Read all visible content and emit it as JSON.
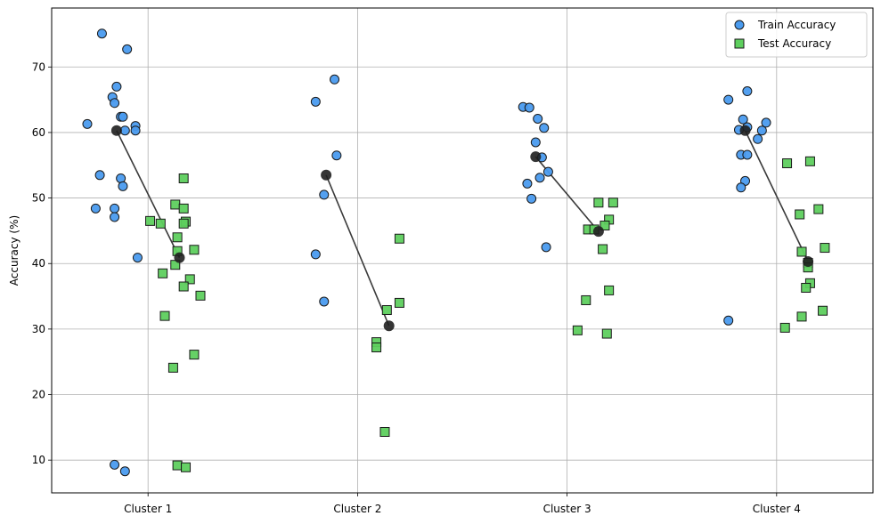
{
  "chart_data": {
    "type": "scatter",
    "title": "",
    "xlabel": "",
    "ylabel": "Accuracy (%)",
    "categories": [
      "Cluster 1",
      "Cluster 2",
      "Cluster 3",
      "Cluster 4"
    ],
    "ylim": [
      5,
      79
    ],
    "yticks": [
      10,
      20,
      30,
      40,
      50,
      60,
      70
    ],
    "grid": true,
    "legend_position": "top-right",
    "series": [
      {
        "name": "Train Accuracy",
        "marker": "circle",
        "color": "#4a9bef",
        "points": [
          {
            "x": -0.29,
            "y": 61.3
          },
          {
            "x": -0.22,
            "y": 75.1
          },
          {
            "x": -0.17,
            "y": 65.4
          },
          {
            "x": -0.16,
            "y": 64.5
          },
          {
            "x": -0.15,
            "y": 67.0
          },
          {
            "x": -0.13,
            "y": 62.4
          },
          {
            "x": -0.12,
            "y": 62.4
          },
          {
            "x": -0.1,
            "y": 72.7
          },
          {
            "x": -0.11,
            "y": 60.3
          },
          {
            "x": -0.06,
            "y": 61.0
          },
          {
            "x": -0.06,
            "y": 60.3
          },
          {
            "x": -0.23,
            "y": 53.5
          },
          {
            "x": -0.13,
            "y": 53.0
          },
          {
            "x": -0.12,
            "y": 51.8
          },
          {
            "x": -0.25,
            "y": 48.4
          },
          {
            "x": -0.16,
            "y": 48.4
          },
          {
            "x": -0.16,
            "y": 47.1
          },
          {
            "x": -0.05,
            "y": 40.9
          },
          {
            "x": -0.16,
            "y": 9.3
          },
          {
            "x": -0.11,
            "y": 8.3
          },
          {
            "x": 0.8,
            "y": 64.7
          },
          {
            "x": 0.89,
            "y": 68.1
          },
          {
            "x": 0.9,
            "y": 56.5
          },
          {
            "x": 0.84,
            "y": 50.5
          },
          {
            "x": 0.8,
            "y": 41.4
          },
          {
            "x": 0.84,
            "y": 34.2
          },
          {
            "x": 1.79,
            "y": 63.9
          },
          {
            "x": 1.82,
            "y": 63.8
          },
          {
            "x": 1.86,
            "y": 62.1
          },
          {
            "x": 1.89,
            "y": 60.7
          },
          {
            "x": 1.85,
            "y": 58.5
          },
          {
            "x": 1.88,
            "y": 56.2
          },
          {
            "x": 1.91,
            "y": 54.0
          },
          {
            "x": 1.87,
            "y": 53.1
          },
          {
            "x": 1.81,
            "y": 52.2
          },
          {
            "x": 1.83,
            "y": 49.9
          },
          {
            "x": 1.9,
            "y": 42.5
          },
          {
            "x": 2.77,
            "y": 65.0
          },
          {
            "x": 2.86,
            "y": 66.3
          },
          {
            "x": 2.84,
            "y": 62.0
          },
          {
            "x": 2.95,
            "y": 61.5
          },
          {
            "x": 2.82,
            "y": 60.4
          },
          {
            "x": 2.86,
            "y": 60.8
          },
          {
            "x": 2.93,
            "y": 60.3
          },
          {
            "x": 2.91,
            "y": 59.0
          },
          {
            "x": 2.83,
            "y": 56.6
          },
          {
            "x": 2.86,
            "y": 56.6
          },
          {
            "x": 2.85,
            "y": 52.6
          },
          {
            "x": 2.83,
            "y": 51.6
          },
          {
            "x": 2.77,
            "y": 31.3
          }
        ]
      },
      {
        "name": "Test Accuracy",
        "marker": "square",
        "color": "#5ecf5e",
        "points": [
          {
            "x": 0.17,
            "y": 53.0
          },
          {
            "x": 0.13,
            "y": 49.0
          },
          {
            "x": 0.17,
            "y": 48.4
          },
          {
            "x": 0.01,
            "y": 46.5
          },
          {
            "x": 0.06,
            "y": 46.1
          },
          {
            "x": 0.18,
            "y": 46.4
          },
          {
            "x": 0.17,
            "y": 46.1
          },
          {
            "x": 0.14,
            "y": 44.0
          },
          {
            "x": 0.22,
            "y": 42.1
          },
          {
            "x": 0.14,
            "y": 41.9
          },
          {
            "x": 0.13,
            "y": 39.8
          },
          {
            "x": 0.07,
            "y": 38.5
          },
          {
            "x": 0.2,
            "y": 37.6
          },
          {
            "x": 0.17,
            "y": 36.5
          },
          {
            "x": 0.25,
            "y": 35.1
          },
          {
            "x": 0.08,
            "y": 32.0
          },
          {
            "x": 0.22,
            "y": 26.1
          },
          {
            "x": 0.12,
            "y": 24.1
          },
          {
            "x": 0.14,
            "y": 9.2
          },
          {
            "x": 0.18,
            "y": 8.9
          },
          {
            "x": 1.2,
            "y": 43.8
          },
          {
            "x": 1.2,
            "y": 34.0
          },
          {
            "x": 1.14,
            "y": 32.9
          },
          {
            "x": 1.09,
            "y": 28.0
          },
          {
            "x": 1.09,
            "y": 27.2
          },
          {
            "x": 1.13,
            "y": 14.3
          },
          {
            "x": 2.15,
            "y": 49.3
          },
          {
            "x": 2.22,
            "y": 49.3
          },
          {
            "x": 2.2,
            "y": 46.7
          },
          {
            "x": 2.18,
            "y": 45.8
          },
          {
            "x": 2.1,
            "y": 45.2
          },
          {
            "x": 2.13,
            "y": 45.2
          },
          {
            "x": 2.17,
            "y": 42.2
          },
          {
            "x": 2.2,
            "y": 35.9
          },
          {
            "x": 2.09,
            "y": 34.4
          },
          {
            "x": 2.05,
            "y": 29.8
          },
          {
            "x": 2.19,
            "y": 29.3
          },
          {
            "x": 3.16,
            "y": 55.6
          },
          {
            "x": 3.05,
            "y": 55.3
          },
          {
            "x": 3.2,
            "y": 48.3
          },
          {
            "x": 3.11,
            "y": 47.5
          },
          {
            "x": 3.23,
            "y": 42.4
          },
          {
            "x": 3.12,
            "y": 41.8
          },
          {
            "x": 3.15,
            "y": 40.1
          },
          {
            "x": 3.15,
            "y": 39.4
          },
          {
            "x": 3.16,
            "y": 37.0
          },
          {
            "x": 3.14,
            "y": 36.3
          },
          {
            "x": 3.22,
            "y": 32.8
          },
          {
            "x": 3.12,
            "y": 31.9
          },
          {
            "x": 3.04,
            "y": 30.2
          }
        ]
      }
    ],
    "means": [
      {
        "category": "Cluster 1",
        "train": {
          "x": -0.15,
          "y": 60.3
        },
        "test": {
          "x": 0.15,
          "y": 40.9
        }
      },
      {
        "category": "Cluster 2",
        "train": {
          "x": 0.85,
          "y": 53.5
        },
        "test": {
          "x": 1.15,
          "y": 30.5
        }
      },
      {
        "category": "Cluster 3",
        "train": {
          "x": 1.85,
          "y": 56.3
        },
        "test": {
          "x": 2.15,
          "y": 44.9
        }
      },
      {
        "category": "Cluster 4",
        "train": {
          "x": 2.85,
          "y": 60.3
        },
        "test": {
          "x": 3.15,
          "y": 40.3
        }
      }
    ],
    "mean_marker_color": "#1f1f1f",
    "mean_line_color": "#3a3a3a"
  }
}
